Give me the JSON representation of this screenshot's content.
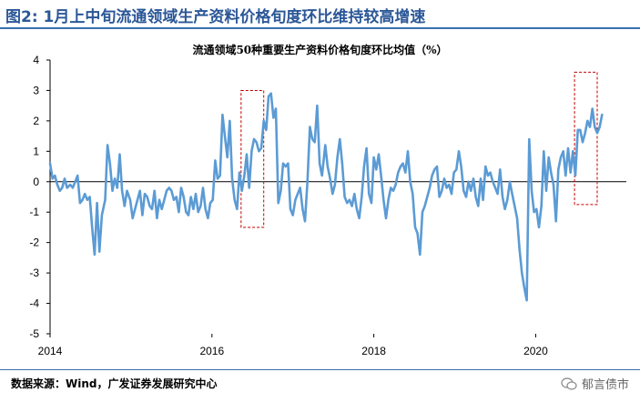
{
  "figure": {
    "title": "图2:  1月上中旬流通领域生产资料价格旬度环比维持较高增速",
    "source": "数据来源：Wind，广发证券发展研究中心",
    "watermark": "郁言债市"
  },
  "chart_data": {
    "type": "line",
    "title": "流通领域50种重要生产资料价格旬度环比均值（%）",
    "xlabel": "",
    "ylabel": "",
    "ylim": [
      -5,
      4
    ],
    "yticks": [
      -5,
      -4,
      -3,
      -2,
      -1,
      0,
      1,
      2,
      3,
      4
    ],
    "xlim": [
      2014.0,
      2021.12
    ],
    "xticks": [
      2014,
      2016,
      2018,
      2020
    ],
    "xtick_labels": [
      "2014",
      "2016",
      "2018",
      "2020"
    ],
    "grid": false,
    "legend": "none",
    "line_color": "#5b9bd5",
    "highlight_color": "#c00000",
    "highlight_boxes": [
      {
        "x_range": [
          2016.36,
          2016.64
        ],
        "y_range": [
          -1.5,
          3.0
        ]
      },
      {
        "x_range": [
          2020.48,
          2020.76
        ],
        "y_range": [
          -0.75,
          3.6
        ]
      }
    ],
    "series": [
      {
        "points": [
          [
            2014.0,
            0.6
          ],
          [
            2014.03,
            0.1
          ],
          [
            2014.06,
            0.2
          ],
          [
            2014.09,
            -0.1
          ],
          [
            2014.12,
            -0.3
          ],
          [
            2014.15,
            -0.2
          ],
          [
            2014.18,
            0.1
          ],
          [
            2014.21,
            -0.2
          ],
          [
            2014.25,
            -0.1
          ],
          [
            2014.28,
            -0.2
          ],
          [
            2014.31,
            0.0
          ],
          [
            2014.34,
            0.2
          ],
          [
            2014.37,
            -0.7
          ],
          [
            2014.4,
            -0.6
          ],
          [
            2014.43,
            -0.4
          ],
          [
            2014.46,
            -0.6
          ],
          [
            2014.49,
            -0.5
          ],
          [
            2014.52,
            -1.5
          ],
          [
            2014.55,
            -2.4
          ],
          [
            2014.58,
            -0.7
          ],
          [
            2014.61,
            -2.3
          ],
          [
            2014.64,
            -1.1
          ],
          [
            2014.68,
            -0.6
          ],
          [
            2014.71,
            1.2
          ],
          [
            2014.74,
            0.6
          ],
          [
            2014.77,
            -0.3
          ],
          [
            2014.8,
            0.1
          ],
          [
            2014.83,
            -0.2
          ],
          [
            2014.86,
            0.9
          ],
          [
            2014.89,
            -0.3
          ],
          [
            2014.92,
            -0.8
          ],
          [
            2014.95,
            -0.3
          ],
          [
            2014.99,
            -0.6
          ],
          [
            2015.02,
            -1.2
          ],
          [
            2015.05,
            -0.9
          ],
          [
            2015.08,
            -0.6
          ],
          [
            2015.11,
            -0.3
          ],
          [
            2015.14,
            -1.1
          ],
          [
            2015.17,
            -0.4
          ],
          [
            2015.2,
            -0.5
          ],
          [
            2015.23,
            -0.8
          ],
          [
            2015.26,
            -0.9
          ],
          [
            2015.29,
            -0.3
          ],
          [
            2015.32,
            -1.2
          ],
          [
            2015.35,
            -0.6
          ],
          [
            2015.38,
            -0.9
          ],
          [
            2015.41,
            -0.6
          ],
          [
            2015.44,
            -0.3
          ],
          [
            2015.47,
            -0.2
          ],
          [
            2015.5,
            -0.3
          ],
          [
            2015.53,
            -0.6
          ],
          [
            2015.56,
            -0.5
          ],
          [
            2015.59,
            -1.0
          ],
          [
            2015.62,
            -0.2
          ],
          [
            2015.65,
            -0.5
          ],
          [
            2015.68,
            -1.0
          ],
          [
            2015.71,
            -1.1
          ],
          [
            2015.74,
            -0.5
          ],
          [
            2015.77,
            -0.9
          ],
          [
            2015.8,
            -0.4
          ],
          [
            2015.83,
            -1.0
          ],
          [
            2015.86,
            -0.8
          ],
          [
            2015.89,
            -0.2
          ],
          [
            2015.92,
            -0.9
          ],
          [
            2015.95,
            -1.2
          ],
          [
            2015.98,
            -0.7
          ],
          [
            2016.01,
            -0.6
          ],
          [
            2016.04,
            0.7
          ],
          [
            2016.07,
            0.1
          ],
          [
            2016.1,
            0.2
          ],
          [
            2016.13,
            2.2
          ],
          [
            2016.16,
            1.5
          ],
          [
            2016.19,
            0.8
          ],
          [
            2016.22,
            2.0
          ],
          [
            2016.25,
            0.1
          ],
          [
            2016.28,
            -0.6
          ],
          [
            2016.31,
            -0.9
          ],
          [
            2016.34,
            0.3
          ],
          [
            2016.37,
            -0.3
          ],
          [
            2016.4,
            0.2
          ],
          [
            2016.43,
            0.9
          ],
          [
            2016.46,
            -0.2
          ],
          [
            2016.49,
            1.0
          ],
          [
            2016.52,
            1.4
          ],
          [
            2016.55,
            1.3
          ],
          [
            2016.58,
            1.0
          ],
          [
            2016.61,
            1.1
          ],
          [
            2016.64,
            2.0
          ],
          [
            2016.67,
            1.7
          ],
          [
            2016.7,
            2.8
          ],
          [
            2016.73,
            2.9
          ],
          [
            2016.76,
            2.1
          ],
          [
            2016.79,
            2.4
          ],
          [
            2016.82,
            -0.7
          ],
          [
            2016.85,
            -0.3
          ],
          [
            2016.88,
            0.6
          ],
          [
            2016.91,
            0.5
          ],
          [
            2016.94,
            0.6
          ],
          [
            2016.97,
            -0.9
          ],
          [
            2017.0,
            -1.1
          ],
          [
            2017.03,
            -0.6
          ],
          [
            2017.06,
            -0.4
          ],
          [
            2017.09,
            -0.2
          ],
          [
            2017.12,
            -0.9
          ],
          [
            2017.15,
            -1.3
          ],
          [
            2017.18,
            0.0
          ],
          [
            2017.21,
            1.8
          ],
          [
            2017.24,
            1.4
          ],
          [
            2017.27,
            1.3
          ],
          [
            2017.3,
            2.5
          ],
          [
            2017.33,
            0.6
          ],
          [
            2017.36,
            0.2
          ],
          [
            2017.4,
            1.2
          ],
          [
            2017.43,
            0.5
          ],
          [
            2017.46,
            0.1
          ],
          [
            2017.49,
            -0.4
          ],
          [
            2017.52,
            -0.1
          ],
          [
            2017.55,
            0.8
          ],
          [
            2017.58,
            1.4
          ],
          [
            2017.61,
            0.6
          ],
          [
            2017.64,
            -0.5
          ],
          [
            2017.67,
            -0.7
          ],
          [
            2017.7,
            -0.6
          ],
          [
            2017.73,
            -0.8
          ],
          [
            2017.76,
            -0.4
          ],
          [
            2017.79,
            -0.9
          ],
          [
            2017.82,
            -1.2
          ],
          [
            2017.85,
            -0.5
          ],
          [
            2017.88,
            0.5
          ],
          [
            2017.91,
            1.1
          ],
          [
            2017.94,
            -0.4
          ],
          [
            2017.97,
            -0.7
          ],
          [
            2018.0,
            0.8
          ],
          [
            2018.03,
            0.4
          ],
          [
            2018.06,
            0.9
          ],
          [
            2018.09,
            0.2
          ],
          [
            2018.12,
            -0.6
          ],
          [
            2018.15,
            -1.2
          ],
          [
            2018.18,
            -0.6
          ],
          [
            2018.21,
            -0.2
          ],
          [
            2018.24,
            -0.3
          ],
          [
            2018.27,
            -0.1
          ],
          [
            2018.3,
            0.3
          ],
          [
            2018.33,
            0.5
          ],
          [
            2018.36,
            0.6
          ],
          [
            2018.39,
            0.3
          ],
          [
            2018.42,
            1.0
          ],
          [
            2018.45,
            0.0
          ],
          [
            2018.48,
            -0.4
          ],
          [
            2018.51,
            -1.5
          ],
          [
            2018.54,
            -1.7
          ],
          [
            2018.57,
            -2.4
          ],
          [
            2018.6,
            -1.0
          ],
          [
            2018.63,
            -0.8
          ],
          [
            2018.66,
            -0.5
          ],
          [
            2018.69,
            -0.2
          ],
          [
            2018.72,
            0.2
          ],
          [
            2018.75,
            0.4
          ],
          [
            2018.78,
            0.5
          ],
          [
            2018.81,
            -0.5
          ],
          [
            2018.84,
            -0.3
          ],
          [
            2018.87,
            0.1
          ],
          [
            2018.9,
            -0.2
          ],
          [
            2018.93,
            -0.1
          ],
          [
            2018.96,
            -0.4
          ],
          [
            2018.99,
            0.3
          ],
          [
            2019.02,
            0.4
          ],
          [
            2019.05,
            1.0
          ],
          [
            2019.08,
            0.5
          ],
          [
            2019.11,
            -0.3
          ],
          [
            2019.14,
            -0.5
          ],
          [
            2019.17,
            0.0
          ],
          [
            2019.2,
            -0.3
          ],
          [
            2019.23,
            0.1
          ],
          [
            2019.26,
            -0.5
          ],
          [
            2019.29,
            -0.8
          ],
          [
            2019.32,
            0.1
          ],
          [
            2019.35,
            -0.6
          ],
          [
            2019.38,
            0.5
          ],
          [
            2019.41,
            0.2
          ],
          [
            2019.44,
            0.3
          ],
          [
            2019.47,
            0.0
          ],
          [
            2019.5,
            -0.2
          ],
          [
            2019.53,
            -0.4
          ],
          [
            2019.56,
            0.4
          ],
          [
            2019.59,
            -0.5
          ],
          [
            2019.62,
            -0.9
          ],
          [
            2019.65,
            -0.6
          ],
          [
            2019.68,
            0.0
          ],
          [
            2019.71,
            -0.4
          ],
          [
            2019.74,
            -0.8
          ],
          [
            2019.77,
            -1.2
          ],
          [
            2019.8,
            -2.2
          ],
          [
            2019.83,
            -3.0
          ],
          [
            2019.86,
            -3.5
          ],
          [
            2019.89,
            -3.9
          ],
          [
            2019.92,
            1.4
          ],
          [
            2019.95,
            -0.3
          ],
          [
            2019.98,
            -1.0
          ],
          [
            2020.01,
            -0.9
          ],
          [
            2020.04,
            -1.5
          ],
          [
            2020.07,
            -0.8
          ],
          [
            2020.1,
            1.0
          ],
          [
            2020.13,
            -0.3
          ],
          [
            2020.16,
            0.8
          ],
          [
            2020.19,
            0.3
          ],
          [
            2020.22,
            -0.1
          ],
          [
            2020.25,
            -1.3
          ],
          [
            2020.28,
            0.4
          ],
          [
            2020.31,
            0.8
          ],
          [
            2020.34,
            1.0
          ],
          [
            2020.37,
            0.2
          ],
          [
            2020.4,
            1.1
          ],
          [
            2020.43,
            0.3
          ],
          [
            2020.46,
            1.0
          ],
          [
            2020.49,
            0.2
          ],
          [
            2020.52,
            1.7
          ],
          [
            2020.55,
            1.7
          ],
          [
            2020.58,
            1.3
          ],
          [
            2020.61,
            1.6
          ],
          [
            2020.64,
            2.0
          ],
          [
            2020.67,
            1.8
          ],
          [
            2020.7,
            2.4
          ],
          [
            2020.73,
            1.8
          ],
          [
            2020.76,
            1.6
          ],
          [
            2020.79,
            1.8
          ],
          [
            2020.82,
            2.2
          ]
        ]
      }
    ]
  }
}
